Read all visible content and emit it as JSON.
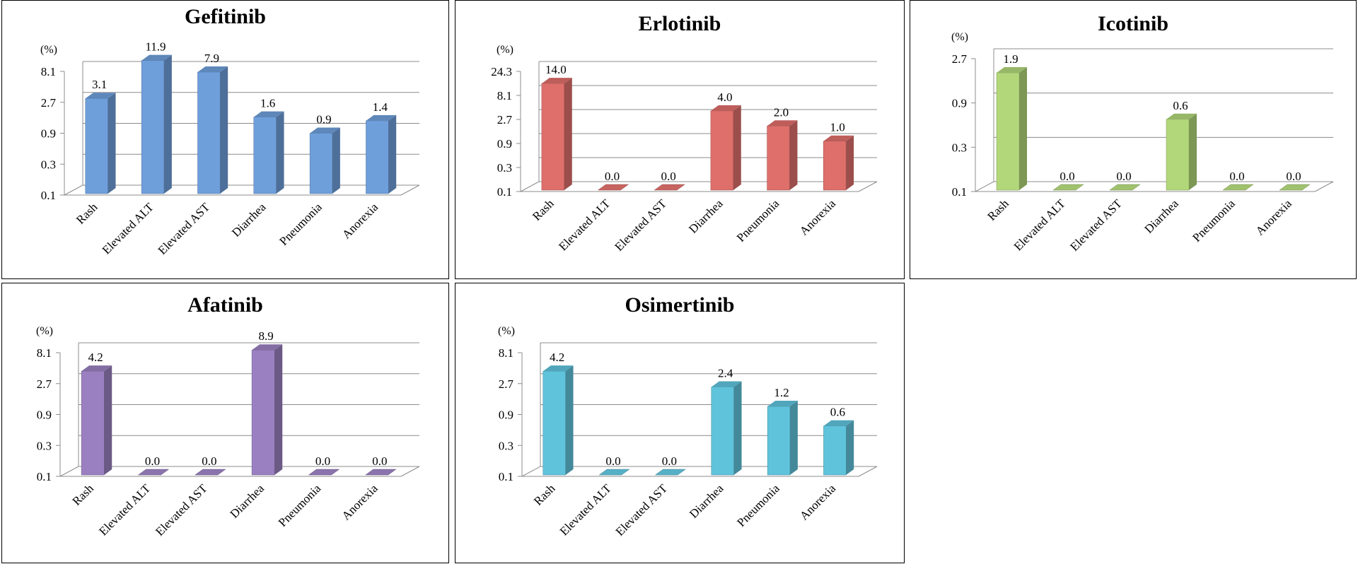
{
  "chart_data": [
    {
      "type": "bar",
      "title": "Gefitinib",
      "ylabel": "(%)",
      "yticks": [
        "0.1",
        "0.3",
        "0.9",
        "2.7",
        "8.1"
      ],
      "yscale": "log3",
      "ylim": [
        0.1,
        24.3
      ],
      "categories": [
        "Rash",
        "Elevated ALT",
        "Elevated AST",
        "Diarrhea",
        "Pneumonia",
        "Anorexia"
      ],
      "values": [
        3.1,
        11.9,
        7.9,
        1.6,
        0.9,
        1.4
      ],
      "labels": [
        "3.1",
        "11.9",
        "7.9",
        "1.6",
        "0.9",
        "1.4"
      ],
      "color": "#6f9fdb",
      "grid": true
    },
    {
      "type": "bar",
      "title": "Erlotinib",
      "ylabel": "(%)",
      "yticks": [
        "0.1",
        "0.3",
        "0.9",
        "2.7",
        "8.1",
        "24.3"
      ],
      "yscale": "log3",
      "ylim": [
        0.1,
        24.3
      ],
      "categories": [
        "Rash",
        "Elevated ALT",
        "Elevated AST",
        "Diarrhea",
        "Pneumonia",
        "Anorexia"
      ],
      "values": [
        14.0,
        0.0,
        0.0,
        4.0,
        2.0,
        1.0
      ],
      "labels": [
        "14.0",
        "0.0",
        "0.0",
        "4.0",
        "2.0",
        "1.0"
      ],
      "color": "#de6f6b",
      "grid": true
    },
    {
      "type": "bar",
      "title": "Icotinib",
      "ylabel": "(%)",
      "yticks": [
        "0.1",
        "0.3",
        "0.9",
        "2.7"
      ],
      "yscale": "log3",
      "ylim": [
        0.1,
        2.7
      ],
      "categories": [
        "Rash",
        "Elevated ALT",
        "Elevated AST",
        "Diarrhea",
        "Pneumonia",
        "Anorexia"
      ],
      "values": [
        1.9,
        0.0,
        0.0,
        0.6,
        0.0,
        0.0
      ],
      "labels": [
        "1.9",
        "0.0",
        "0.0",
        "0.6",
        "0.0",
        "0.0"
      ],
      "color": "#b2d77a",
      "grid": true
    },
    {
      "type": "bar",
      "title": "Afatinib",
      "ylabel": "(%)",
      "yticks": [
        "0.1",
        "0.3",
        "0.9",
        "2.7",
        "8.1"
      ],
      "yscale": "log3",
      "ylim": [
        0.1,
        8.1
      ],
      "categories": [
        "Rash",
        "Elevated ALT",
        "Elevated AST",
        "Diarrhea",
        "Pneumonia",
        "Anorexia"
      ],
      "values": [
        4.2,
        0.0,
        0.0,
        8.9,
        0.0,
        0.0
      ],
      "labels": [
        "4.2",
        "0.0",
        "0.0",
        "8.9",
        "0.0",
        "0.0"
      ],
      "color": "#9a80c0",
      "grid": true
    },
    {
      "type": "bar",
      "title": "Osimertinib",
      "ylabel": "(%)",
      "yticks": [
        "0.1",
        "0.3",
        "0.9",
        "2.7",
        "8.1"
      ],
      "yscale": "log3",
      "ylim": [
        0.1,
        8.1
      ],
      "categories": [
        "Rash",
        "Elevated ALT",
        "Elevated AST",
        "Diarrhea",
        "Pneumonia",
        "Anorexia"
      ],
      "values": [
        4.2,
        0.0,
        0.0,
        2.4,
        1.2,
        0.6
      ],
      "labels": [
        "4.2",
        "0.0",
        "0.0",
        "2.4",
        "1.2",
        "0.6"
      ],
      "color": "#5fc3dc",
      "grid": true
    }
  ]
}
